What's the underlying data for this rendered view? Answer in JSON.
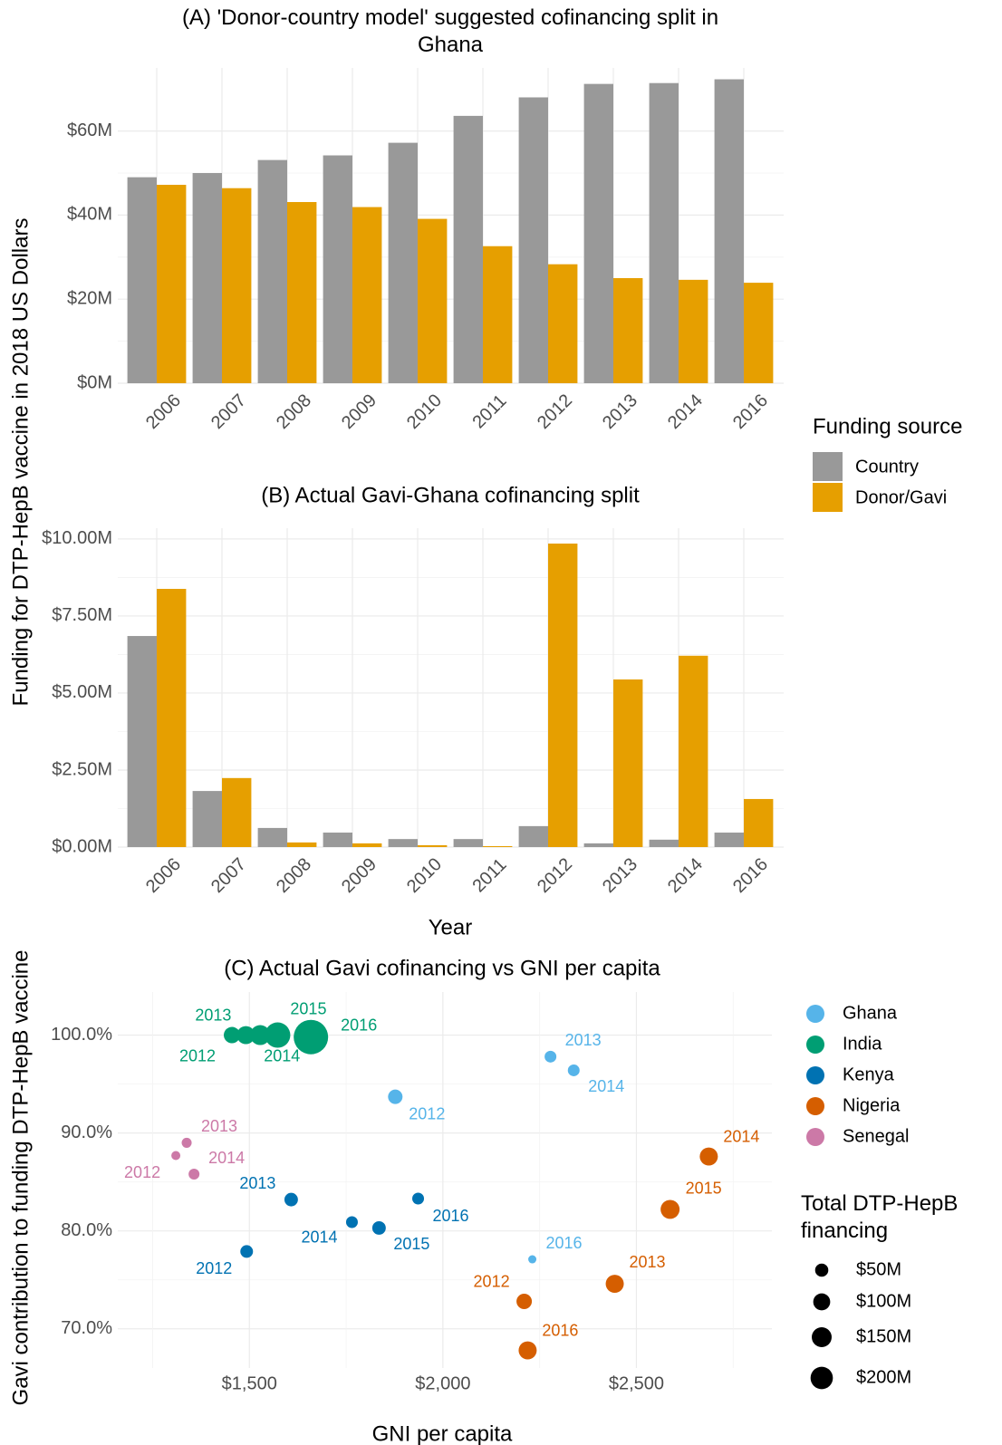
{
  "ylabel": "Funding for DTP-HepB vaccine in 2018 US Dollars",
  "legend_title": "Funding source",
  "chart_data": [
    {
      "type": "bar",
      "title": "(A) 'Donor-country model' suggested cofinancing split in Ghana",
      "categories": [
        "2006",
        "2007",
        "2008",
        "2009",
        "2010",
        "2011",
        "2012",
        "2013",
        "2014",
        "2016"
      ],
      "series": [
        {
          "name": "Country",
          "color": "#999999",
          "values": [
            49000000,
            50000000,
            53100000,
            54200000,
            57200000,
            63600000,
            68000000,
            71200000,
            71400000,
            72300000
          ]
        },
        {
          "name": "Donor/Gavi",
          "color": "#E69F00",
          "values": [
            47200000,
            46400000,
            43100000,
            41900000,
            39100000,
            32600000,
            28300000,
            25000000,
            24600000,
            23900000
          ]
        }
      ],
      "ylim": [
        0,
        75000000
      ],
      "yticks": [
        {
          "value": 0,
          "label": "$0M"
        },
        {
          "value": 20000000,
          "label": "$20M"
        },
        {
          "value": 40000000,
          "label": "$40M"
        },
        {
          "value": 60000000,
          "label": "$60M"
        }
      ],
      "grid": true
    },
    {
      "type": "bar",
      "title": "(B) Actual Gavi-Ghana cofinancing split",
      "xlabel": "Year",
      "categories": [
        "2006",
        "2007",
        "2008",
        "2009",
        "2010",
        "2011",
        "2012",
        "2013",
        "2014",
        "2016"
      ],
      "series": [
        {
          "name": "Country",
          "color": "#999999",
          "values": [
            6850000,
            1820000,
            620000,
            470000,
            260000,
            260000,
            680000,
            120000,
            240000,
            470000
          ]
        },
        {
          "name": "Donor/Gavi",
          "color": "#E69F00",
          "values": [
            8380000,
            2240000,
            150000,
            120000,
            60000,
            30000,
            9850000,
            5440000,
            6210000,
            1560000
          ]
        }
      ],
      "ylim": [
        0,
        10350000
      ],
      "yticks": [
        {
          "value": 0,
          "label": "$0.00M"
        },
        {
          "value": 2500000,
          "label": "$2.50M"
        },
        {
          "value": 5000000,
          "label": "$5.00M"
        },
        {
          "value": 7500000,
          "label": "$7.50M"
        },
        {
          "value": 10000000,
          "label": "$10.00M"
        }
      ],
      "grid": true
    },
    {
      "type": "scatter",
      "title": "(C) Actual Gavi cofinancing vs GNI per capita",
      "xlabel": "GNI per capita",
      "ylabel": "Gavi contribution to funding DTP-HepB vaccine",
      "series": [
        {
          "name": "Ghana",
          "color": "#56B4E9",
          "x": [
            1877,
            2278,
            2338,
            2231
          ],
          "values": [
            93.7,
            97.8,
            96.4,
            77.1
          ],
          "sizes": [
            27700000,
            13600000,
            13600000,
            2500000
          ],
          "labels": [
            "2012",
            "2013",
            "2014",
            "2016"
          ]
        },
        {
          "name": "India",
          "color": "#009E73",
          "x": [
            1455,
            1491,
            1528,
            1573,
            1659
          ],
          "values": [
            100,
            100,
            100,
            100,
            99.8
          ],
          "sizes": [
            40000000,
            54000000,
            71000000,
            134000000,
            284000000
          ],
          "labels": [
            "2012",
            "2013",
            "2014",
            "2015",
            "2016"
          ]
        },
        {
          "name": "Kenya",
          "color": "#0072B2",
          "x": [
            1493,
            1608,
            1765,
            1835,
            1936
          ],
          "values": [
            77.9,
            83.2,
            80.9,
            80.3,
            83.3
          ],
          "sizes": [
            17700000,
            22000000,
            13600000,
            22000000,
            13600000
          ],
          "labels": [
            "2012",
            "2013",
            "2014",
            "2015",
            "2016"
          ]
        },
        {
          "name": "Nigeria",
          "color": "#D55E00",
          "x": [
            2210,
            2444,
            2687,
            2587,
            2219
          ],
          "values": [
            72.8,
            74.6,
            87.6,
            82.2,
            67.8
          ],
          "sizes": [
            33500000,
            54000000,
            54000000,
            62000000,
            54000000
          ],
          "labels": [
            "2012",
            "2013",
            "2014",
            "2015",
            "2016"
          ]
        },
        {
          "name": "Senegal",
          "color": "#CC79A7",
          "x": [
            1310,
            1338,
            1357
          ],
          "values": [
            87.7,
            89.0,
            85.8
          ],
          "sizes": [
            4400000,
            7000000,
            10000000
          ],
          "labels": [
            "2012",
            "2013",
            "2014"
          ]
        }
      ],
      "xlim": [
        1160,
        2850
      ],
      "xticks": [
        {
          "value": 1500,
          "label": "$1,500"
        },
        {
          "value": 2000,
          "label": "$2,000"
        },
        {
          "value": 2500,
          "label": "$2,500"
        }
      ],
      "ylim": [
        66,
        104.4
      ],
      "yticks": [
        {
          "value": 70,
          "label": "70.0%"
        },
        {
          "value": 80,
          "label": "80.0%"
        },
        {
          "value": 90,
          "label": "90.0%"
        },
        {
          "value": 100,
          "label": "100.0%"
        }
      ],
      "grid": true,
      "size_legend_title": "Total DTP-HepB financing",
      "size_legend": [
        {
          "value": 50000000,
          "label": "$50M"
        },
        {
          "value": 100000000,
          "label": "$100M"
        },
        {
          "value": 150000000,
          "label": "$150M"
        },
        {
          "value": 200000000,
          "label": "$200M"
        }
      ]
    }
  ]
}
